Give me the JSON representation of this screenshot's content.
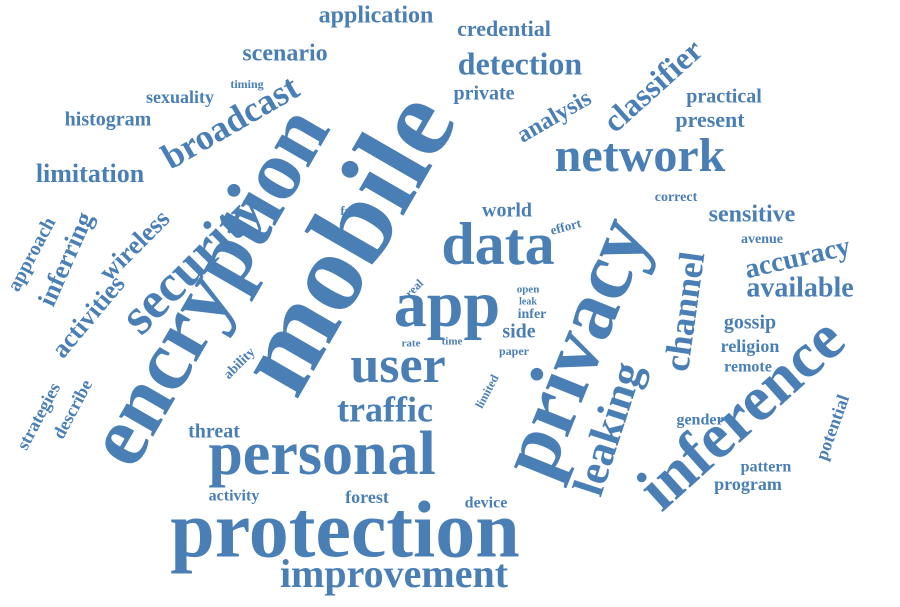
{
  "word_cloud": {
    "color": "#4a7fb5",
    "words": [
      {
        "text": "mobile",
        "weight": 10
      },
      {
        "text": "encryption",
        "weight": 9
      },
      {
        "text": "privacy",
        "weight": 8
      },
      {
        "text": "protection",
        "weight": 8
      },
      {
        "text": "personal",
        "weight": 7
      },
      {
        "text": "inference",
        "weight": 7
      },
      {
        "text": "app",
        "weight": 7
      },
      {
        "text": "data",
        "weight": 7
      },
      {
        "text": "network",
        "weight": 6
      },
      {
        "text": "security",
        "weight": 6
      },
      {
        "text": "user",
        "weight": 6
      },
      {
        "text": "improvement",
        "weight": 5
      },
      {
        "text": "leaking",
        "weight": 5
      },
      {
        "text": "traffic",
        "weight": 4
      },
      {
        "text": "broadcast",
        "weight": 4
      },
      {
        "text": "channel",
        "weight": 4
      },
      {
        "text": "detection",
        "weight": 4
      },
      {
        "text": "classifier",
        "weight": 4
      },
      {
        "text": "accuracy",
        "weight": 3
      },
      {
        "text": "available",
        "weight": 3
      },
      {
        "text": "limitation",
        "weight": 3
      },
      {
        "text": "application",
        "weight": 3
      },
      {
        "text": "scenario",
        "weight": 3
      },
      {
        "text": "sensitive",
        "weight": 3
      },
      {
        "text": "analysis",
        "weight": 3
      },
      {
        "text": "wireless",
        "weight": 3
      },
      {
        "text": "inferring",
        "weight": 3
      },
      {
        "text": "activities",
        "weight": 3
      },
      {
        "text": "credential",
        "weight": 2
      },
      {
        "text": "histogram",
        "weight": 2
      },
      {
        "text": "sexuality",
        "weight": 2
      },
      {
        "text": "present",
        "weight": 2
      },
      {
        "text": "practical",
        "weight": 2
      },
      {
        "text": "private",
        "weight": 2
      },
      {
        "text": "approach",
        "weight": 2
      },
      {
        "text": "strategies",
        "weight": 2
      },
      {
        "text": "describe",
        "weight": 2
      },
      {
        "text": "world",
        "weight": 2
      },
      {
        "text": "gossip",
        "weight": 2
      },
      {
        "text": "side",
        "weight": 2
      },
      {
        "text": "threat",
        "weight": 2
      },
      {
        "text": "forest",
        "weight": 2
      },
      {
        "text": "religion",
        "weight": 2
      },
      {
        "text": "potential",
        "weight": 2
      },
      {
        "text": "program",
        "weight": 2
      },
      {
        "text": "remote",
        "weight": 1
      },
      {
        "text": "pattern",
        "weight": 1
      },
      {
        "text": "gender",
        "weight": 1
      },
      {
        "text": "avenue",
        "weight": 1
      },
      {
        "text": "correct",
        "weight": 1
      },
      {
        "text": "effort",
        "weight": 1
      },
      {
        "text": "frame",
        "weight": 1
      },
      {
        "text": "timing",
        "weight": 1
      },
      {
        "text": "ability",
        "weight": 1
      },
      {
        "text": "real",
        "weight": 1
      },
      {
        "text": "rate",
        "weight": 1
      },
      {
        "text": "time",
        "weight": 1
      },
      {
        "text": "paper",
        "weight": 1
      },
      {
        "text": "open",
        "weight": 1
      },
      {
        "text": "leak",
        "weight": 1
      },
      {
        "text": "infer",
        "weight": 1
      },
      {
        "text": "limited",
        "weight": 1
      },
      {
        "text": "activity",
        "weight": 1
      },
      {
        "text": "device",
        "weight": 1
      }
    ]
  }
}
